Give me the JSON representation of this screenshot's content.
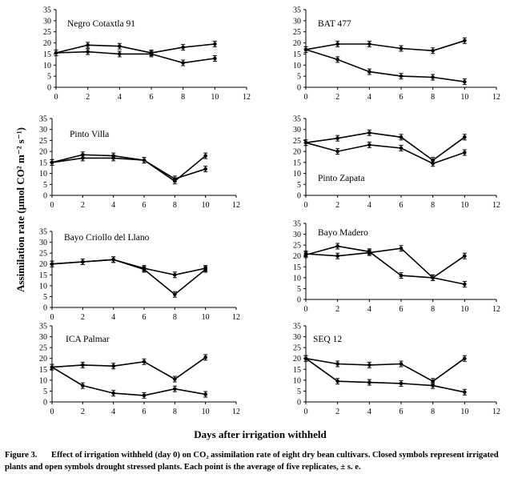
{
  "figure": {
    "ylabel": "Assimilation rate (µmol CO² m⁻² s⁻¹)",
    "xlabel": "Days after irrigation  withheld"
  },
  "caption": {
    "label": "Figure 3.",
    "text": "Effect of irrigation withheld (day 0) on CO₂ assimilation rate of eight dry bean cultivars. Closed symbols represent irrigated plants and open symbols drought stressed plants. Each point is the average of five replicates, ± s. e."
  },
  "chart_data": [
    {
      "type": "line",
      "title": "Negro Cotaxtla 91",
      "xlim": [
        0,
        12
      ],
      "ylim": [
        0,
        35
      ],
      "xticks": [
        0,
        2,
        4,
        6,
        8,
        10,
        12
      ],
      "yticks": [
        0,
        5,
        10,
        15,
        20,
        25,
        30,
        35
      ],
      "series": [
        {
          "name": "Irrigated",
          "x": [
            0,
            2,
            4,
            6,
            8,
            10
          ],
          "y": [
            15.5,
            19,
            18.5,
            15.5,
            18,
            19.5
          ]
        },
        {
          "name": "Drought stressed",
          "x": [
            0,
            2,
            4,
            6,
            8,
            10
          ],
          "y": [
            15.5,
            16,
            15,
            15,
            11,
            13
          ]
        }
      ]
    },
    {
      "type": "line",
      "title": "BAT 477",
      "xlim": [
        0,
        12
      ],
      "ylim": [
        0,
        35
      ],
      "xticks": [
        0,
        2,
        4,
        6,
        8,
        10,
        12
      ],
      "yticks": [
        0,
        5,
        10,
        15,
        20,
        25,
        30,
        35
      ],
      "series": [
        {
          "name": "Irrigated",
          "x": [
            0,
            2,
            4,
            6,
            8,
            10
          ],
          "y": [
            17,
            19.5,
            19.5,
            17.5,
            16.5,
            21
          ]
        },
        {
          "name": "Drought stressed",
          "x": [
            0,
            2,
            4,
            6,
            8,
            10
          ],
          "y": [
            17,
            12.5,
            7,
            5,
            4.5,
            2.5
          ]
        }
      ]
    },
    {
      "type": "line",
      "title": "Pinto Villa",
      "xlim": [
        0,
        12
      ],
      "ylim": [
        0,
        35
      ],
      "xticks": [
        0,
        2,
        4,
        6,
        8,
        10,
        12
      ],
      "yticks": [
        0,
        5,
        10,
        15,
        20,
        25,
        30,
        35
      ],
      "series": [
        {
          "name": "Irrigated",
          "x": [
            0,
            2,
            4,
            6,
            8,
            10
          ],
          "y": [
            15,
            18.5,
            18,
            16,
            6.5,
            18
          ]
        },
        {
          "name": "Drought stressed",
          "x": [
            0,
            2,
            4,
            6,
            8,
            10
          ],
          "y": [
            15,
            17,
            17,
            16,
            7.5,
            12
          ]
        }
      ]
    },
    {
      "type": "line",
      "title": "Pinto Zapata",
      "xlim": [
        0,
        12
      ],
      "ylim": [
        0,
        35
      ],
      "xticks": [
        0,
        2,
        4,
        6,
        8,
        10,
        12
      ],
      "yticks": [
        0,
        5,
        10,
        15,
        20,
        25,
        30,
        35
      ],
      "series": [
        {
          "name": "Irrigated",
          "x": [
            0,
            2,
            4,
            6,
            8,
            10
          ],
          "y": [
            24,
            26,
            28.5,
            26.5,
            16,
            26.5
          ]
        },
        {
          "name": "Drought stressed",
          "x": [
            0,
            2,
            4,
            6,
            8,
            10
          ],
          "y": [
            24,
            20,
            23,
            21.5,
            14.5,
            19.5
          ]
        }
      ]
    },
    {
      "type": "line",
      "title": "Bayo Criollo del Llano",
      "xlim": [
        0,
        12
      ],
      "ylim": [
        0,
        35
      ],
      "xticks": [
        0,
        2,
        4,
        6,
        8,
        10,
        12
      ],
      "yticks": [
        0,
        5,
        10,
        15,
        20,
        25,
        30,
        35
      ],
      "series": [
        {
          "name": "Irrigated",
          "x": [
            0,
            2,
            4,
            6,
            8,
            10
          ],
          "y": [
            20,
            21,
            22,
            18,
            15,
            18
          ]
        },
        {
          "name": "Drought stressed",
          "x": [
            0,
            2,
            4,
            6,
            8,
            10
          ],
          "y": [
            20,
            21,
            22,
            17.5,
            6,
            17.5
          ]
        }
      ]
    },
    {
      "type": "line",
      "title": "Bayo Madero",
      "xlim": [
        0,
        12
      ],
      "ylim": [
        0,
        35
      ],
      "xticks": [
        0,
        2,
        4,
        6,
        8,
        10,
        12
      ],
      "yticks": [
        0,
        5,
        10,
        15,
        20,
        25,
        30,
        35
      ],
      "series": [
        {
          "name": "Irrigated",
          "x": [
            0,
            2,
            4,
            6,
            8,
            10
          ],
          "y": [
            21,
            20,
            21.5,
            23.5,
            10,
            20
          ]
        },
        {
          "name": "Drought stressed",
          "x": [
            0,
            2,
            4,
            6,
            8,
            10
          ],
          "y": [
            20.5,
            24.5,
            22,
            11,
            10,
            7
          ]
        }
      ]
    },
    {
      "type": "line",
      "title": "ICA Palmar",
      "xlim": [
        0,
        12
      ],
      "ylim": [
        0,
        35
      ],
      "xticks": [
        0,
        2,
        4,
        6,
        8,
        10,
        12
      ],
      "yticks": [
        0,
        5,
        10,
        15,
        20,
        25,
        30,
        35
      ],
      "series": [
        {
          "name": "Irrigated",
          "x": [
            0,
            2,
            4,
            6,
            8,
            10
          ],
          "y": [
            16,
            17,
            16.5,
            18.5,
            10.5,
            20.5
          ]
        },
        {
          "name": "Drought stressed",
          "x": [
            0,
            2,
            4,
            6,
            8,
            10
          ],
          "y": [
            16,
            7.5,
            4,
            3,
            6,
            3.5
          ]
        }
      ]
    },
    {
      "type": "line",
      "title": "SEQ 12",
      "xlim": [
        0,
        12
      ],
      "ylim": [
        0,
        35
      ],
      "xticks": [
        0,
        2,
        4,
        6,
        8,
        10,
        12
      ],
      "yticks": [
        0,
        5,
        10,
        15,
        20,
        25,
        30,
        35
      ],
      "series": [
        {
          "name": "Irrigated",
          "x": [
            0,
            2,
            4,
            6,
            8,
            10
          ],
          "y": [
            20,
            17.5,
            17,
            17.5,
            9.5,
            20
          ]
        },
        {
          "name": "Drought stressed",
          "x": [
            0,
            2,
            4,
            6,
            8,
            10
          ],
          "y": [
            20,
            9.5,
            9,
            8.5,
            7.5,
            4.5
          ]
        }
      ]
    }
  ]
}
